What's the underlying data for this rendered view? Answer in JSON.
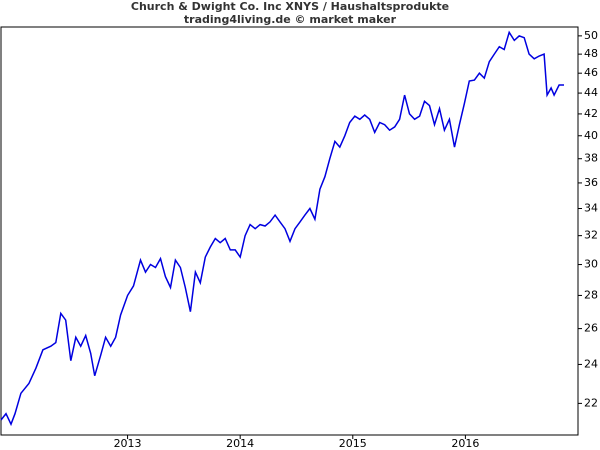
{
  "chart_data": {
    "type": "line",
    "title": "Church & Dwight Co. Inc XNYS / Haushaltsprodukte",
    "subtitle": "trading4living.de © market maker",
    "x": [
      2011.876,
      2011.92,
      2011.965,
      2012.0,
      2012.053,
      2012.124,
      2012.186,
      2012.248,
      2012.318,
      2012.363,
      2012.407,
      2012.451,
      2012.496,
      2012.54,
      2012.584,
      2012.628,
      2012.673,
      2012.708,
      2012.761,
      2012.805,
      2012.85,
      2012.894,
      2012.938,
      2013.0,
      2013.053,
      2013.115,
      2013.159,
      2013.204,
      2013.248,
      2013.292,
      2013.336,
      2013.381,
      2013.425,
      2013.469,
      2013.513,
      2013.558,
      2013.602,
      2013.646,
      2013.69,
      2013.735,
      2013.779,
      2013.823,
      2013.867,
      2013.912,
      2013.956,
      2014.0,
      2014.044,
      2014.088,
      2014.133,
      2014.177,
      2014.221,
      2014.265,
      2014.31,
      2014.354,
      2014.398,
      2014.442,
      2014.487,
      2014.531,
      2014.575,
      2014.619,
      2014.664,
      2014.708,
      2014.752,
      2014.796,
      2014.841,
      2014.885,
      2014.929,
      2014.973,
      2015.018,
      2015.062,
      2015.106,
      2015.15,
      2015.195,
      2015.239,
      2015.283,
      2015.327,
      2015.372,
      2015.416,
      2015.46,
      2015.504,
      2015.549,
      2015.593,
      2015.637,
      2015.681,
      2015.726,
      2015.77,
      2015.814,
      2015.858,
      2015.903,
      2015.947,
      2015.991,
      2016.035,
      2016.08,
      2016.124,
      2016.168,
      2016.212,
      2016.257,
      2016.301,
      2016.345,
      2016.389,
      2016.434,
      2016.478,
      2016.522,
      2016.566,
      2016.611,
      2016.655,
      2016.699,
      2016.726,
      2016.761,
      2016.788,
      2016.832,
      2016.876
    ],
    "series": [
      {
        "name": "Church & Dwight Co. Inc",
        "color": "#0000e0",
        "values": [
          21.2,
          21.5,
          21.0,
          21.5,
          22.5,
          23.0,
          23.8,
          24.8,
          25.0,
          25.2,
          26.9,
          26.5,
          24.2,
          25.5,
          25.0,
          25.6,
          24.6,
          23.4,
          24.5,
          25.5,
          25.0,
          25.5,
          26.8,
          28.0,
          28.6,
          30.3,
          29.5,
          30.0,
          29.8,
          30.4,
          29.2,
          28.5,
          30.3,
          29.8,
          28.5,
          27.0,
          29.5,
          28.8,
          30.5,
          31.2,
          31.8,
          31.5,
          31.8,
          31.0,
          31.0,
          30.5,
          32.0,
          32.8,
          32.5,
          32.8,
          32.7,
          33.0,
          33.5,
          33.0,
          32.5,
          31.6,
          32.5,
          33.0,
          33.5,
          34.0,
          33.2,
          35.5,
          36.5,
          38.0,
          39.5,
          39.0,
          40.0,
          41.2,
          41.8,
          41.5,
          41.9,
          41.5,
          40.3,
          41.2,
          41.0,
          40.5,
          40.8,
          41.5,
          43.8,
          42.0,
          41.5,
          41.8,
          43.2,
          42.8,
          41.0,
          42.5,
          40.5,
          41.5,
          39.0,
          41.0,
          43.0,
          45.2,
          45.3,
          46.0,
          45.5,
          47.2,
          48.0,
          48.8,
          48.5,
          50.4,
          49.5,
          50.0,
          49.8,
          48.0,
          47.5,
          47.8,
          48.0,
          43.8,
          44.5,
          43.8,
          44.8,
          44.8
        ]
      }
    ],
    "xlim": [
      2011.876,
      2017.0
    ],
    "xticks": [
      2013,
      2014,
      2015,
      2016
    ],
    "ylim": [
      20.5,
      51
    ],
    "log_y": true,
    "yticks": [
      22,
      24,
      26,
      28,
      30,
      32,
      34,
      36,
      38,
      40,
      42,
      44,
      46,
      48,
      50
    ]
  }
}
